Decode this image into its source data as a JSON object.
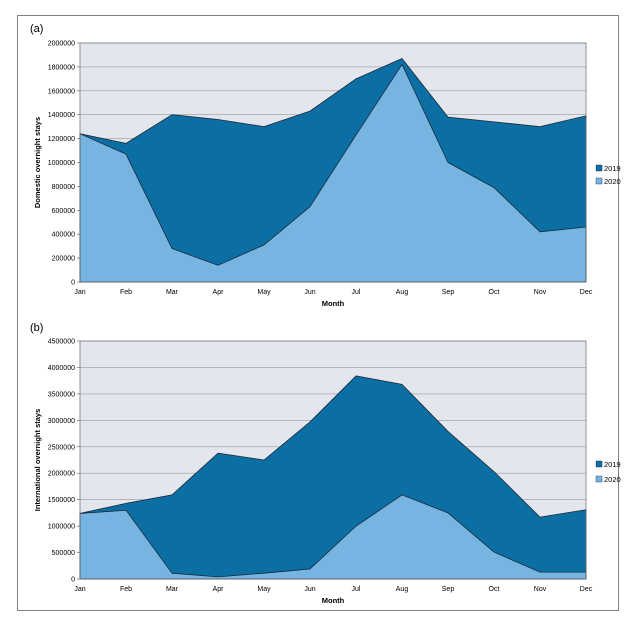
{
  "chart_data": [
    {
      "type": "area",
      "panel_label": "(a)",
      "title": "",
      "xlabel": "Month",
      "ylabel": "Domestic overnight stays",
      "ylim": [
        0,
        2000000
      ],
      "yticks": [
        0,
        200000,
        400000,
        600000,
        800000,
        1000000,
        1200000,
        1400000,
        1600000,
        1800000,
        2000000
      ],
      "categories": [
        "Jan",
        "Feb",
        "Mar",
        "Apr",
        "May",
        "Jun",
        "Jul",
        "Aug",
        "Sep",
        "Oct",
        "Nov",
        "Dec"
      ],
      "series": [
        {
          "name": "2019",
          "color": "#0B6FA4",
          "values": [
            1240000,
            1160000,
            1400000,
            1360000,
            1300000,
            1430000,
            1700000,
            1870000,
            1380000,
            1340000,
            1300000,
            1390000
          ]
        },
        {
          "name": "2020",
          "color": "#76B5E2",
          "values": [
            1240000,
            1070000,
            280000,
            140000,
            310000,
            630000,
            1230000,
            1820000,
            1000000,
            790000,
            420000,
            460000
          ]
        }
      ],
      "legend": "right",
      "grid": true
    },
    {
      "type": "area",
      "panel_label": "(b)",
      "title": "",
      "xlabel": "Month",
      "ylabel": "International overnight stays",
      "ylim": [
        0,
        4500000
      ],
      "yticks": [
        0,
        500000,
        1000000,
        1500000,
        2000000,
        2500000,
        3000000,
        3500000,
        4000000,
        4500000
      ],
      "categories": [
        "Jan",
        "Feb",
        "Mar",
        "Apr",
        "May",
        "Jun",
        "Jul",
        "Aug",
        "Sep",
        "Oct",
        "Nov",
        "Dec"
      ],
      "series": [
        {
          "name": "2019",
          "color": "#0B6FA4",
          "values": [
            1240000,
            1430000,
            1590000,
            2380000,
            2250000,
            2970000,
            3840000,
            3680000,
            2790000,
            2030000,
            1170000,
            1310000
          ]
        },
        {
          "name": "2020",
          "color": "#76B5E2",
          "values": [
            1240000,
            1300000,
            110000,
            40000,
            110000,
            190000,
            1000000,
            1590000,
            1250000,
            510000,
            130000,
            130000
          ]
        }
      ],
      "legend": "right",
      "grid": true
    }
  ]
}
